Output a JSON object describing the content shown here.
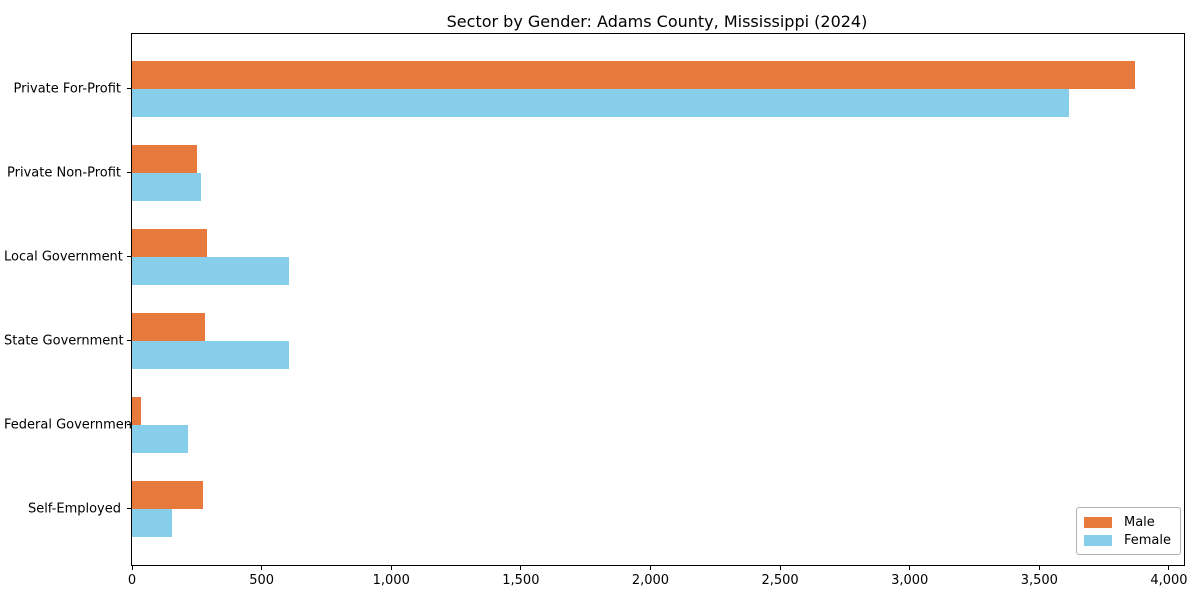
{
  "figure": {
    "background": "#ffffff",
    "spine_color": "#000000",
    "legend_border_color": "#b3b3b3"
  },
  "chart_data": {
    "type": "bar",
    "orientation": "horizontal",
    "title": "Sector by Gender: Adams County, Mississippi (2024)",
    "xlabel": "",
    "ylabel": "",
    "categories": [
      "Private For-Profit",
      "Private Non-Profit",
      "Local Government",
      "State Government",
      "Federal Government",
      "Self-Employed"
    ],
    "series": [
      {
        "name": "Male",
        "color": "#e8793d",
        "values": [
          3870,
          250,
          290,
          281,
          35,
          274
        ]
      },
      {
        "name": "Female",
        "color": "#87ceeb",
        "values": [
          3615,
          265,
          605,
          605,
          215,
          155
        ]
      }
    ],
    "xlim": [
      0,
      4058
    ],
    "xticks": [
      0,
      500,
      1000,
      1500,
      2000,
      2500,
      3000,
      3500,
      4000
    ],
    "xtick_labels": [
      "0",
      "500",
      "1,000",
      "1,500",
      "2,000",
      "2,500",
      "3,000",
      "3,500",
      "4,000"
    ],
    "grid": false,
    "legend": {
      "position": "lower right",
      "entries": [
        "Male",
        "Female"
      ]
    }
  }
}
